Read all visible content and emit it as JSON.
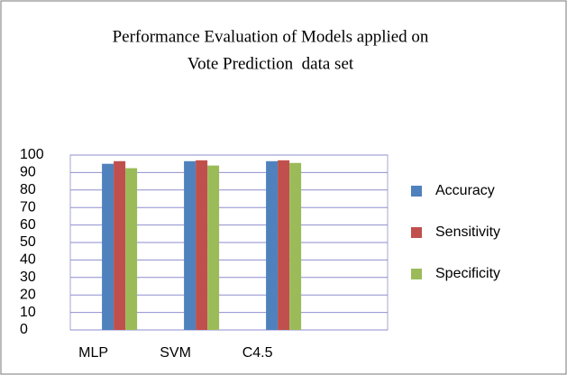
{
  "chart_data": {
    "type": "bar",
    "title": [
      "Performance Evaluation of Models applied on",
      "Vote Prediction  data set"
    ],
    "categories": [
      "MLP",
      "SVM",
      "C4.5"
    ],
    "series": [
      {
        "name": "Accuracy",
        "color": "#4f81bd",
        "values": [
          95,
          96.5,
          96.5
        ]
      },
      {
        "name": "Sensitivity",
        "color": "#c0504d",
        "values": [
          96.5,
          97,
          97
        ]
      },
      {
        "name": "Specificity",
        "color": "#9bbb59",
        "values": [
          92.5,
          94,
          95.5
        ]
      }
    ],
    "ylim": [
      0,
      100
    ],
    "yticks": [
      0,
      10,
      20,
      30,
      40,
      50,
      60,
      70,
      80,
      90,
      100
    ],
    "grid": true,
    "legend": "right"
  }
}
